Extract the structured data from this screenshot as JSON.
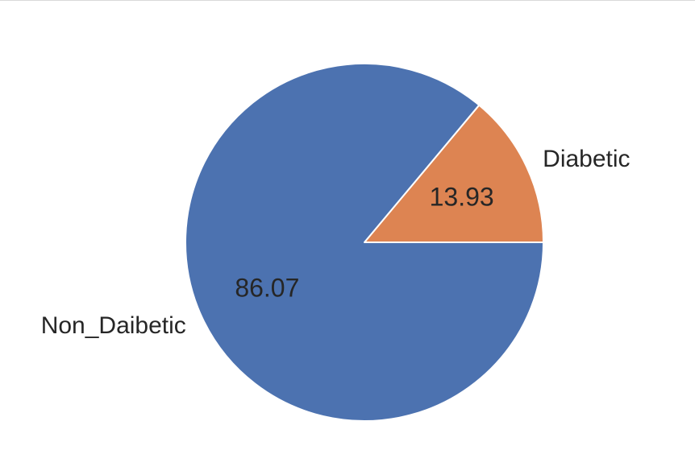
{
  "chart_data": {
    "type": "pie",
    "categories": [
      "Diabetic",
      "Non_Daibetic"
    ],
    "values": [
      13.93,
      86.07
    ],
    "value_labels": [
      "13.93",
      "86.07"
    ],
    "colors": [
      "#dd8452",
      "#4c72b0"
    ],
    "start_angle_deg": 0,
    "direction": "counterclockwise",
    "legend": "none",
    "title": ""
  }
}
